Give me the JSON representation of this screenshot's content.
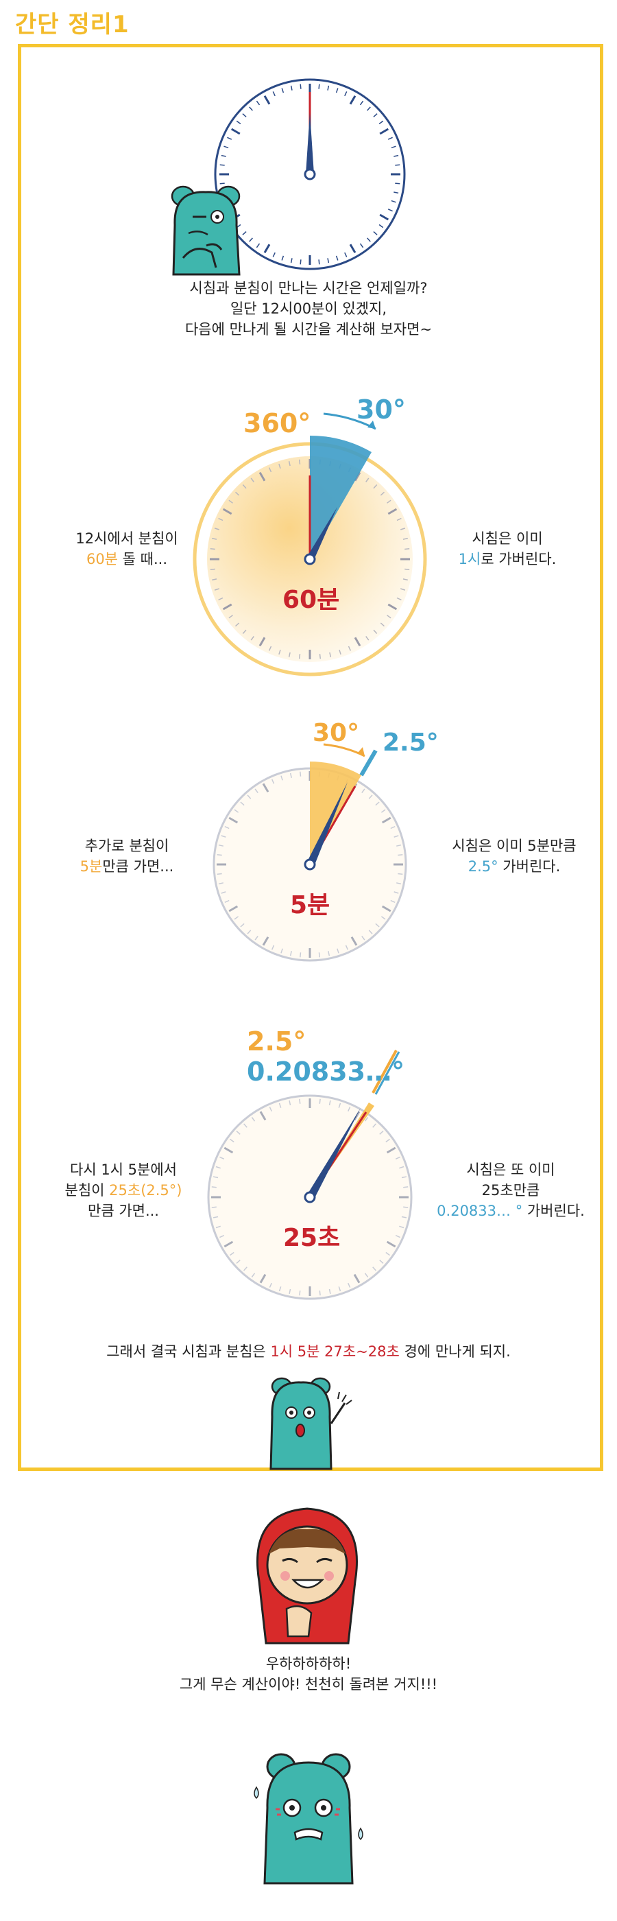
{
  "title": "간단 정리1",
  "intro": {
    "line1": "시침과 분침이 만나는 시간은 언제일까?",
    "line2": "일단 12시00분이 있겠지,",
    "line3": "다음에 만나게 될 시간을 계산해 보자면~"
  },
  "panel1": {
    "angle_big": "360°",
    "angle_small": "30°",
    "center_label": "60분",
    "left_line1": "12시에서 분침이",
    "left_highlight": "60분",
    "left_line2_rest": " 돌 때...",
    "right_line1": "시침은 이미",
    "right_highlight": "1시",
    "right_line2_rest": "로 가버린다."
  },
  "panel2": {
    "angle_big": "30°",
    "angle_small": "2.5°",
    "center_label": "5분",
    "left_line1": "추가로 분침이",
    "left_highlight": "5분",
    "left_line2_rest": "만큼 가면...",
    "right_line1": "시침은 이미 5분만큼",
    "right_highlight": "2.5°",
    "right_line2_rest": " 가버린다."
  },
  "panel3": {
    "angle_big": "2.5°",
    "angle_small": "0.20833…°",
    "center_label": "25초",
    "left_line1": "다시 1시 5분에서",
    "left_line2_pre": "분침이 ",
    "left_highlight": "25초(2.5°)",
    "left_line3": "만큼 가면...",
    "right_line1": "시침은 또 이미",
    "right_line2": "25초만큼",
    "right_highlight": "0.20833… °",
    "right_line3_rest": " 가버린다."
  },
  "conclusion": {
    "pre": "그래서 결국 시침과 분침은 ",
    "highlight": "1시 5분 27초~28초",
    "post": " 경에 만나게 되지."
  },
  "ending": {
    "line1": "우하하하하하!",
    "line2": "그게 무슨 계산이야! 천천히 돌려본 거지!!!"
  },
  "colors": {
    "accent_yellow": "#f6c630",
    "orange": "#f2a93b",
    "blue": "#44a3cc",
    "red": "#c8232c",
    "navy": "#2b4a86",
    "bear": "#3fb6ad"
  }
}
